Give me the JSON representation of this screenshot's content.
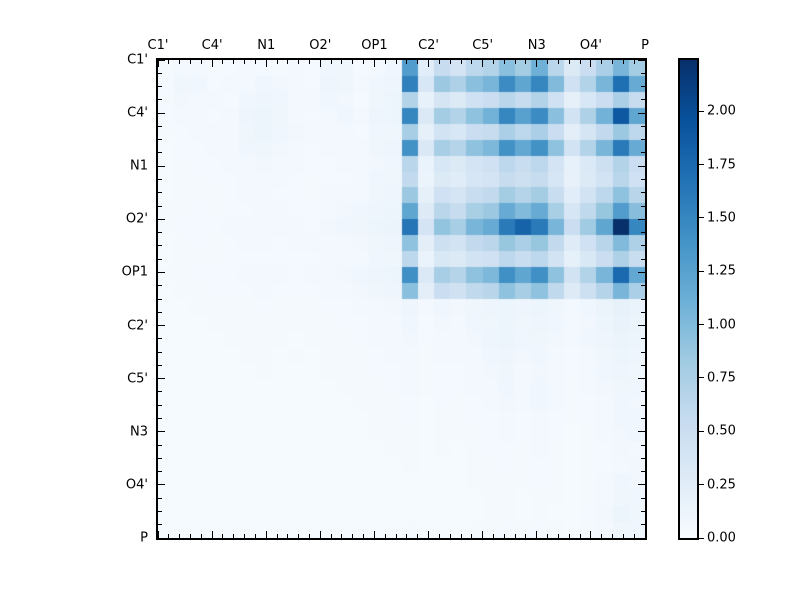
{
  "figure": {
    "background": "#ffffff"
  },
  "chart_data": {
    "type": "heatmap",
    "title": "",
    "xlabel": "",
    "ylabel": "",
    "x_labels": [
      "C1'",
      "C4'",
      "N1",
      "O2'",
      "OP1",
      "C2'",
      "C5'",
      "N3",
      "O4'",
      "P"
    ],
    "y_labels": [
      "C1'",
      "C4'",
      "N1",
      "O2'",
      "OP1",
      "C2'",
      "C5'",
      "N3",
      "O4'",
      "P"
    ],
    "grid_size": 30,
    "vmin": 0.0,
    "vmax": 2.24,
    "colormap": "Blues",
    "colormap_stops": [
      {
        "t": 0.0,
        "c": "#f7fbff"
      },
      {
        "t": 0.125,
        "c": "#deebf7"
      },
      {
        "t": 0.25,
        "c": "#c6dbef"
      },
      {
        "t": 0.375,
        "c": "#9ecae1"
      },
      {
        "t": 0.5,
        "c": "#6baed6"
      },
      {
        "t": 0.625,
        "c": "#4292c6"
      },
      {
        "t": 0.75,
        "c": "#2171b5"
      },
      {
        "t": 0.875,
        "c": "#08519c"
      },
      {
        "t": 1.0,
        "c": "#08306b"
      }
    ],
    "colorbar_ticks": [
      {
        "value": 0.0,
        "label": "0.00"
      },
      {
        "value": 0.25,
        "label": "0.25"
      },
      {
        "value": 0.5,
        "label": "0.50"
      },
      {
        "value": 0.75,
        "label": "0.75"
      },
      {
        "value": 1.0,
        "label": "1.00"
      },
      {
        "value": 1.25,
        "label": "1.25"
      },
      {
        "value": 1.5,
        "label": "1.50"
      },
      {
        "value": 1.75,
        "label": "1.75"
      },
      {
        "value": 2.0,
        "label": "2.00"
      }
    ],
    "axis_style": {
      "ticks_inward": true,
      "x_minor_per_major": 5,
      "y_minor_per_major": 4,
      "major_tick_len": 7,
      "minor_tick_len": 4
    },
    "matrix": [
      [
        0.03,
        0.06,
        0.05,
        0.03,
        0.04,
        0.05,
        0.04,
        0.03,
        0.05,
        0.04,
        0.08,
        0.09,
        0.04,
        0.05,
        0.08,
        1.3,
        0.25,
        0.55,
        0.4,
        0.62,
        0.7,
        0.95,
        0.8,
        1.1,
        0.65,
        0.3,
        0.5,
        0.75,
        1.05,
        0.8
      ],
      [
        0.04,
        0.09,
        0.08,
        0.04,
        0.05,
        0.06,
        0.08,
        0.07,
        0.05,
        0.04,
        0.1,
        0.09,
        0.05,
        0.08,
        0.1,
        1.55,
        0.35,
        0.85,
        0.72,
        0.95,
        1.05,
        1.45,
        1.2,
        1.5,
        1.0,
        0.45,
        0.7,
        1.05,
        1.7,
        1.15
      ],
      [
        0.03,
        0.07,
        0.06,
        0.05,
        0.04,
        0.08,
        0.1,
        0.08,
        0.06,
        0.05,
        0.08,
        0.07,
        0.04,
        0.09,
        0.12,
        0.7,
        0.18,
        0.38,
        0.3,
        0.45,
        0.5,
        0.65,
        0.55,
        0.7,
        0.45,
        0.2,
        0.35,
        0.5,
        0.75,
        0.55
      ],
      [
        0.04,
        0.05,
        0.06,
        0.04,
        0.06,
        0.1,
        0.12,
        0.09,
        0.06,
        0.04,
        0.06,
        0.08,
        0.05,
        0.1,
        0.11,
        1.5,
        0.32,
        0.8,
        0.7,
        0.92,
        1.08,
        1.5,
        1.25,
        1.45,
        0.95,
        0.42,
        0.72,
        1.08,
        1.9,
        1.2
      ],
      [
        0.03,
        0.04,
        0.05,
        0.06,
        0.05,
        0.09,
        0.11,
        0.08,
        0.07,
        0.05,
        0.05,
        0.06,
        0.04,
        0.08,
        0.09,
        0.78,
        0.2,
        0.42,
        0.35,
        0.5,
        0.55,
        0.75,
        0.62,
        0.75,
        0.5,
        0.22,
        0.38,
        0.58,
        0.85,
        0.62
      ],
      [
        0.02,
        0.04,
        0.04,
        0.05,
        0.06,
        0.08,
        0.09,
        0.07,
        0.05,
        0.04,
        0.05,
        0.05,
        0.06,
        0.09,
        0.1,
        1.4,
        0.33,
        0.78,
        0.68,
        0.92,
        1.02,
        1.4,
        1.18,
        1.4,
        0.92,
        0.42,
        0.7,
        1.05,
        1.6,
        1.15
      ],
      [
        0.02,
        0.03,
        0.04,
        0.04,
        0.05,
        0.06,
        0.07,
        0.06,
        0.05,
        0.04,
        0.04,
        0.05,
        0.05,
        0.07,
        0.08,
        0.65,
        0.15,
        0.35,
        0.3,
        0.4,
        0.45,
        0.62,
        0.52,
        0.62,
        0.4,
        0.18,
        0.32,
        0.48,
        0.7,
        0.5
      ],
      [
        0.02,
        0.03,
        0.03,
        0.04,
        0.04,
        0.05,
        0.06,
        0.05,
        0.04,
        0.03,
        0.04,
        0.04,
        0.05,
        0.08,
        0.09,
        0.58,
        0.14,
        0.3,
        0.26,
        0.36,
        0.4,
        0.55,
        0.48,
        0.55,
        0.36,
        0.17,
        0.3,
        0.42,
        0.65,
        0.46
      ],
      [
        0.02,
        0.03,
        0.03,
        0.03,
        0.04,
        0.05,
        0.05,
        0.04,
        0.04,
        0.03,
        0.05,
        0.05,
        0.06,
        0.09,
        0.1,
        0.85,
        0.2,
        0.45,
        0.38,
        0.52,
        0.58,
        0.8,
        0.68,
        0.8,
        0.52,
        0.25,
        0.42,
        0.62,
        0.92,
        0.66
      ],
      [
        0.03,
        0.03,
        0.04,
        0.03,
        0.04,
        0.04,
        0.05,
        0.05,
        0.04,
        0.04,
        0.06,
        0.07,
        0.08,
        0.1,
        0.12,
        1.2,
        0.28,
        0.65,
        0.55,
        0.76,
        0.85,
        1.15,
        1.0,
        1.15,
        0.76,
        0.36,
        0.6,
        0.88,
        1.3,
        0.96
      ],
      [
        0.03,
        0.04,
        0.04,
        0.04,
        0.05,
        0.05,
        0.06,
        0.05,
        0.05,
        0.04,
        0.07,
        0.08,
        0.09,
        0.11,
        0.13,
        1.65,
        0.4,
        0.9,
        0.78,
        1.05,
        1.15,
        1.6,
        1.8,
        1.6,
        1.05,
        0.5,
        0.82,
        1.2,
        2.24,
        1.5
      ],
      [
        0.02,
        0.03,
        0.04,
        0.03,
        0.04,
        0.05,
        0.05,
        0.04,
        0.05,
        0.05,
        0.06,
        0.06,
        0.07,
        0.09,
        0.1,
        0.92,
        0.22,
        0.48,
        0.42,
        0.58,
        0.64,
        0.88,
        0.75,
        0.88,
        0.58,
        0.27,
        0.45,
        0.66,
        1.0,
        0.72
      ],
      [
        0.02,
        0.03,
        0.03,
        0.03,
        0.04,
        0.04,
        0.04,
        0.04,
        0.04,
        0.04,
        0.05,
        0.05,
        0.06,
        0.08,
        0.09,
        0.62,
        0.15,
        0.34,
        0.3,
        0.42,
        0.46,
        0.62,
        0.52,
        0.62,
        0.42,
        0.2,
        0.34,
        0.5,
        0.72,
        0.52
      ],
      [
        0.03,
        0.03,
        0.04,
        0.04,
        0.04,
        0.05,
        0.05,
        0.05,
        0.04,
        0.05,
        0.06,
        0.07,
        0.08,
        0.1,
        0.11,
        1.42,
        0.32,
        0.78,
        0.68,
        0.92,
        1.02,
        1.42,
        1.2,
        1.42,
        0.92,
        0.42,
        0.7,
        1.05,
        1.75,
        1.18
      ],
      [
        0.02,
        0.03,
        0.03,
        0.04,
        0.04,
        0.04,
        0.05,
        0.04,
        0.04,
        0.04,
        0.05,
        0.06,
        0.07,
        0.09,
        0.1,
        0.95,
        0.22,
        0.5,
        0.44,
        0.6,
        0.66,
        0.92,
        0.78,
        0.92,
        0.6,
        0.28,
        0.48,
        0.68,
        1.05,
        0.75
      ],
      [
        0.02,
        0.02,
        0.03,
        0.03,
        0.03,
        0.03,
        0.04,
        0.03,
        0.03,
        0.03,
        0.04,
        0.04,
        0.05,
        0.06,
        0.07,
        0.1,
        0.05,
        0.08,
        0.07,
        0.09,
        0.1,
        0.12,
        0.1,
        0.12,
        0.09,
        0.06,
        0.08,
        0.14,
        0.18,
        0.15
      ],
      [
        0.02,
        0.02,
        0.02,
        0.03,
        0.03,
        0.03,
        0.03,
        0.03,
        0.03,
        0.03,
        0.03,
        0.04,
        0.04,
        0.05,
        0.06,
        0.08,
        0.04,
        0.07,
        0.06,
        0.08,
        0.09,
        0.11,
        0.09,
        0.1,
        0.08,
        0.05,
        0.07,
        0.12,
        0.16,
        0.13
      ],
      [
        0.02,
        0.02,
        0.02,
        0.02,
        0.03,
        0.03,
        0.03,
        0.03,
        0.02,
        0.03,
        0.03,
        0.03,
        0.04,
        0.05,
        0.05,
        0.07,
        0.04,
        0.06,
        0.05,
        0.07,
        0.1,
        0.12,
        0.08,
        0.09,
        0.07,
        0.05,
        0.08,
        0.1,
        0.14,
        0.12
      ],
      [
        0.02,
        0.02,
        0.02,
        0.02,
        0.02,
        0.03,
        0.03,
        0.02,
        0.03,
        0.02,
        0.03,
        0.03,
        0.03,
        0.04,
        0.05,
        0.06,
        0.03,
        0.05,
        0.05,
        0.06,
        0.08,
        0.1,
        0.07,
        0.08,
        0.06,
        0.04,
        0.06,
        0.09,
        0.12,
        0.1
      ],
      [
        0.02,
        0.02,
        0.02,
        0.02,
        0.02,
        0.02,
        0.03,
        0.02,
        0.02,
        0.02,
        0.03,
        0.03,
        0.03,
        0.04,
        0.04,
        0.05,
        0.03,
        0.04,
        0.04,
        0.05,
        0.07,
        0.09,
        0.06,
        0.07,
        0.05,
        0.04,
        0.05,
        0.08,
        0.1,
        0.09
      ],
      [
        0.02,
        0.02,
        0.02,
        0.02,
        0.02,
        0.02,
        0.02,
        0.02,
        0.02,
        0.02,
        0.02,
        0.03,
        0.03,
        0.03,
        0.04,
        0.05,
        0.03,
        0.04,
        0.04,
        0.05,
        0.06,
        0.08,
        0.06,
        0.08,
        0.05,
        0.03,
        0.05,
        0.07,
        0.09,
        0.08
      ],
      [
        0.02,
        0.02,
        0.02,
        0.02,
        0.02,
        0.02,
        0.02,
        0.02,
        0.02,
        0.02,
        0.02,
        0.02,
        0.03,
        0.03,
        0.03,
        0.04,
        0.02,
        0.04,
        0.03,
        0.04,
        0.05,
        0.07,
        0.05,
        0.08,
        0.05,
        0.03,
        0.04,
        0.06,
        0.08,
        0.07
      ],
      [
        0.02,
        0.02,
        0.02,
        0.02,
        0.02,
        0.02,
        0.02,
        0.02,
        0.02,
        0.02,
        0.02,
        0.02,
        0.02,
        0.03,
        0.03,
        0.04,
        0.02,
        0.03,
        0.03,
        0.04,
        0.04,
        0.06,
        0.04,
        0.06,
        0.04,
        0.03,
        0.04,
        0.05,
        0.08,
        0.08
      ],
      [
        0.02,
        0.02,
        0.02,
        0.02,
        0.02,
        0.02,
        0.02,
        0.02,
        0.02,
        0.02,
        0.02,
        0.02,
        0.02,
        0.03,
        0.03,
        0.03,
        0.02,
        0.03,
        0.03,
        0.03,
        0.04,
        0.05,
        0.04,
        0.05,
        0.04,
        0.02,
        0.03,
        0.05,
        0.07,
        0.08
      ],
      [
        0.02,
        0.02,
        0.02,
        0.02,
        0.02,
        0.02,
        0.02,
        0.02,
        0.02,
        0.02,
        0.02,
        0.02,
        0.02,
        0.02,
        0.03,
        0.03,
        0.02,
        0.03,
        0.02,
        0.03,
        0.04,
        0.04,
        0.03,
        0.05,
        0.03,
        0.02,
        0.03,
        0.04,
        0.07,
        0.06
      ],
      [
        0.02,
        0.02,
        0.02,
        0.02,
        0.02,
        0.02,
        0.02,
        0.02,
        0.02,
        0.02,
        0.02,
        0.02,
        0.02,
        0.02,
        0.02,
        0.03,
        0.02,
        0.02,
        0.02,
        0.03,
        0.03,
        0.04,
        0.03,
        0.04,
        0.03,
        0.02,
        0.03,
        0.04,
        0.05,
        0.07
      ],
      [
        0.02,
        0.02,
        0.02,
        0.02,
        0.02,
        0.02,
        0.02,
        0.02,
        0.02,
        0.02,
        0.02,
        0.02,
        0.02,
        0.02,
        0.02,
        0.02,
        0.02,
        0.02,
        0.02,
        0.03,
        0.03,
        0.03,
        0.03,
        0.04,
        0.03,
        0.02,
        0.03,
        0.06,
        0.08,
        0.07
      ],
      [
        0.02,
        0.02,
        0.02,
        0.02,
        0.02,
        0.02,
        0.02,
        0.02,
        0.02,
        0.02,
        0.02,
        0.02,
        0.02,
        0.02,
        0.02,
        0.02,
        0.02,
        0.02,
        0.02,
        0.02,
        0.03,
        0.03,
        0.02,
        0.03,
        0.03,
        0.02,
        0.03,
        0.05,
        0.09,
        0.08
      ],
      [
        0.02,
        0.02,
        0.02,
        0.02,
        0.02,
        0.02,
        0.02,
        0.02,
        0.02,
        0.02,
        0.02,
        0.02,
        0.02,
        0.02,
        0.02,
        0.02,
        0.02,
        0.02,
        0.02,
        0.02,
        0.03,
        0.03,
        0.02,
        0.03,
        0.02,
        0.02,
        0.04,
        0.07,
        0.11,
        0.09
      ],
      [
        0.02,
        0.02,
        0.02,
        0.02,
        0.02,
        0.02,
        0.02,
        0.02,
        0.02,
        0.02,
        0.02,
        0.02,
        0.02,
        0.02,
        0.02,
        0.03,
        0.02,
        0.02,
        0.02,
        0.03,
        0.03,
        0.04,
        0.03,
        0.04,
        0.03,
        0.02,
        0.03,
        0.06,
        0.09,
        0.08
      ]
    ]
  }
}
